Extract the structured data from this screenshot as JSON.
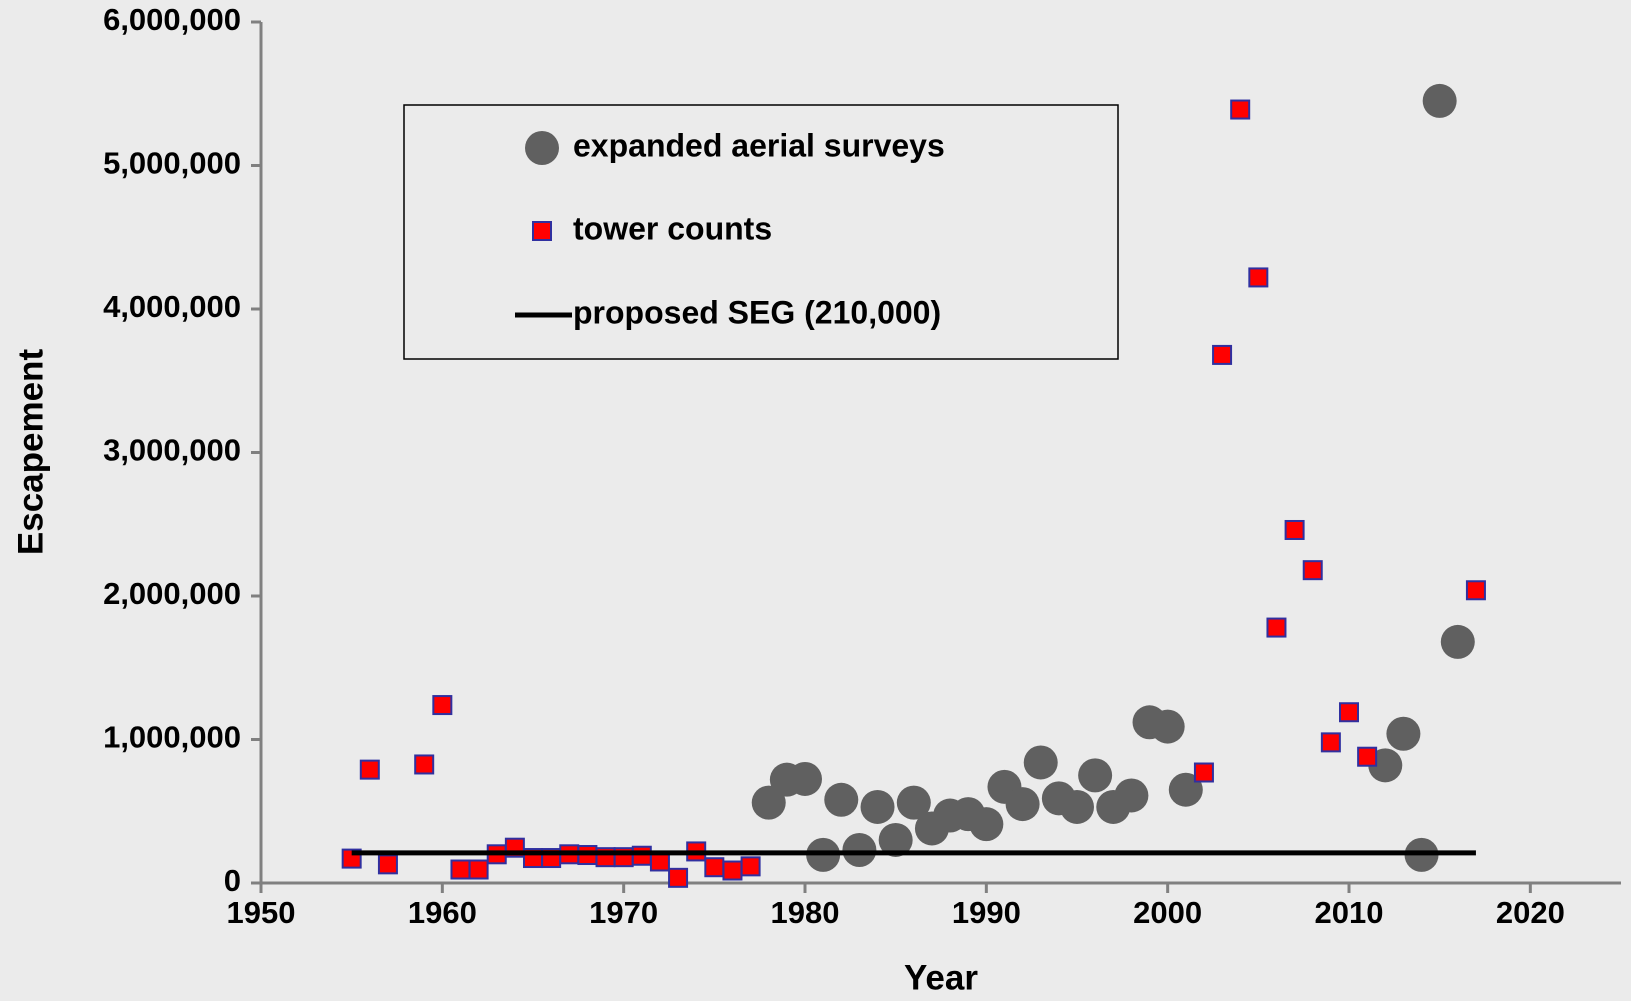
{
  "chart_data": {
    "type": "scatter",
    "xlabel": "Year",
    "ylabel": "Escapement",
    "xlim": [
      1950,
      2025
    ],
    "xticks": [
      1950,
      1960,
      1970,
      1980,
      1990,
      2000,
      2010,
      2020
    ],
    "ylim": [
      0,
      6000000
    ],
    "yticks": [
      {
        "value": 0,
        "label": "0"
      },
      {
        "value": 1000000,
        "label": "1,000,000"
      },
      {
        "value": 2000000,
        "label": "2,000,000"
      },
      {
        "value": 3000000,
        "label": "3,000,000"
      },
      {
        "value": 4000000,
        "label": "4,000,000"
      },
      {
        "value": 5000000,
        "label": "5,000,000"
      },
      {
        "value": 6000000,
        "label": "6,000,000"
      }
    ],
    "series": [
      {
        "name": "expanded aerial surveys",
        "style": "circle",
        "color": "#606060",
        "x": [
          1978,
          1979,
          1980,
          1981,
          1982,
          1983,
          1984,
          1985,
          1986,
          1987,
          1988,
          1989,
          1990,
          1991,
          1992,
          1993,
          1994,
          1995,
          1996,
          1997,
          1998,
          1999,
          2000,
          2001,
          2012,
          2013,
          2014,
          2015,
          2016
        ],
        "values": [
          560000,
          720000,
          725000,
          196000,
          580000,
          230000,
          530000,
          300000,
          560000,
          380000,
          470000,
          480000,
          410000,
          670000,
          550000,
          840000,
          590000,
          530000,
          750000,
          530000,
          610000,
          1120000,
          1090000,
          650000,
          820000,
          1040000,
          196000,
          5450000,
          1680000
        ]
      },
      {
        "name": "tower counts",
        "style": "square",
        "color": "#ff0000",
        "edgecolor": "#3030a0",
        "x": [
          1955,
          1956,
          1957,
          1959,
          1960,
          1961,
          1962,
          1963,
          1964,
          1965,
          1966,
          1967,
          1968,
          1969,
          1970,
          1971,
          1972,
          1973,
          1974,
          1975,
          1976,
          1977,
          2002,
          2003,
          2004,
          2005,
          2006,
          2007,
          2008,
          2009,
          2010,
          2011,
          2017
        ],
        "values": [
          170000,
          790000,
          130000,
          826000,
          1240000,
          94000,
          94000,
          200000,
          246000,
          174000,
          174000,
          200000,
          195000,
          180000,
          180000,
          190000,
          150000,
          36000,
          220000,
          110000,
          87000,
          116000,
          770000,
          3680000,
          5390000,
          4220000,
          1780000,
          2460000,
          2180000,
          980000,
          1190000,
          880000,
          2040000
        ]
      },
      {
        "name": "proposed SEG (210,000)",
        "style": "line",
        "color": "#000000",
        "x": [
          1955,
          2017
        ],
        "values": [
          210000,
          210000
        ]
      }
    ]
  }
}
